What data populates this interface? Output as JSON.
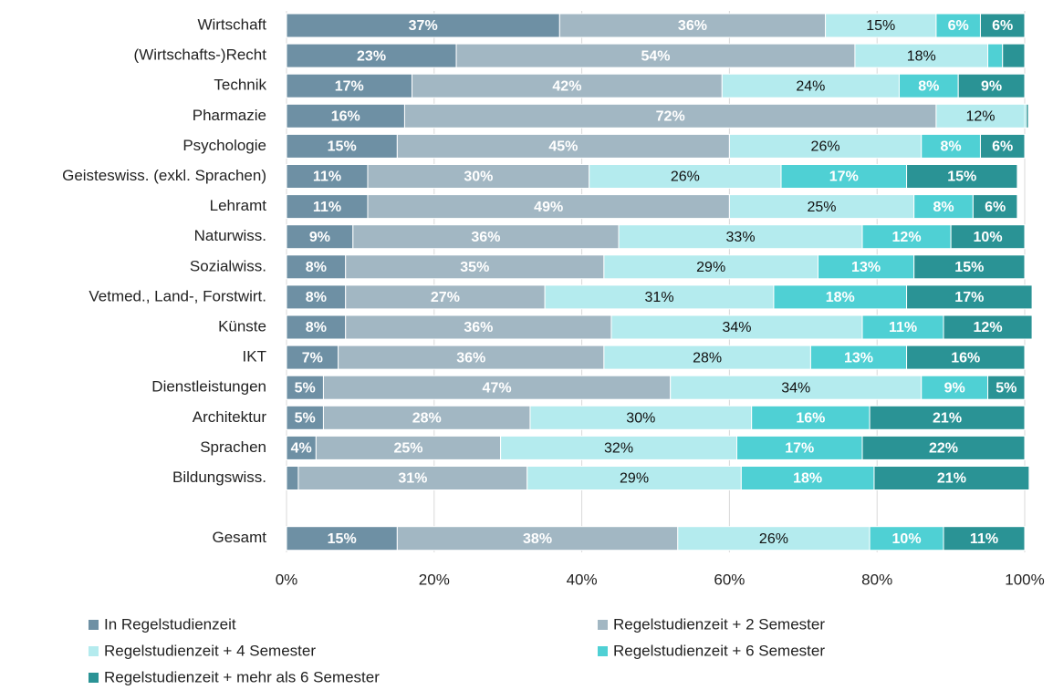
{
  "chart_data": {
    "type": "stacked-bar",
    "orientation": "horizontal",
    "categories": [
      "Wirtschaft",
      "(Wirtschafts-)Recht",
      "Technik",
      "Pharmazie",
      "Psychologie",
      "Geisteswiss. (exkl. Sprachen)",
      "Lehramt",
      "Naturwiss.",
      "Sozialwiss.",
      "Vetmed., Land-, Forstwirt.",
      "Künste",
      "IKT",
      "Dienstleistungen",
      "Architektur",
      "Sprachen",
      "Bildungswiss.",
      null,
      "Gesamt"
    ],
    "series": [
      {
        "name": "In Regelstudienzeit",
        "color": "#6e90a4",
        "values": [
          37,
          23,
          17,
          16,
          15,
          11,
          11,
          9,
          8,
          8,
          8,
          7,
          5,
          5,
          4,
          1.6,
          null,
          15
        ],
        "value_labels": [
          "37%",
          "23%",
          "17%",
          "16%",
          "15%",
          "11%",
          "11%",
          "9%",
          "8%",
          "8%",
          "8%",
          "7%",
          "5%",
          "5%",
          "4%",
          null,
          null,
          "15%"
        ]
      },
      {
        "name": "Regelstudienzeit + 2 Semester",
        "color": "#a2b7c3",
        "values": [
          36,
          54,
          42,
          72,
          45,
          30,
          49,
          36,
          35,
          27,
          36,
          36,
          47,
          28,
          25,
          31,
          null,
          38
        ],
        "value_labels": [
          "36%",
          "54%",
          "42%",
          "72%",
          "45%",
          "30%",
          "49%",
          "36%",
          "35%",
          "27%",
          "36%",
          "36%",
          "47%",
          "28%",
          "25%",
          "31%",
          null,
          "38%"
        ]
      },
      {
        "name": "Regelstudienzeit + 4 Semester",
        "color": "#b4ebee",
        "values": [
          15,
          18,
          24,
          12,
          26,
          26,
          25,
          33,
          29,
          31,
          34,
          28,
          34,
          30,
          32,
          29,
          null,
          26
        ],
        "value_labels": [
          "15%",
          "18%",
          "24%",
          "12%",
          "26%",
          "26%",
          "25%",
          "33%",
          "29%",
          "31%",
          "34%",
          "28%",
          "34%",
          "30%",
          "32%",
          "29%",
          null,
          "26%"
        ]
      },
      {
        "name": "Regelstudienzeit + 6 Semester",
        "color": "#4fd0d4",
        "values": [
          6,
          2,
          8,
          0.2,
          8,
          17,
          8,
          12,
          13,
          18,
          11,
          13,
          9,
          16,
          17,
          18,
          null,
          10
        ],
        "value_labels": [
          "6%",
          null,
          "8%",
          null,
          "8%",
          "17%",
          "8%",
          "12%",
          "13%",
          "18%",
          "11%",
          "13%",
          "9%",
          "16%",
          "17%",
          "18%",
          null,
          "10%"
        ]
      },
      {
        "name": "Regelstudienzeit + mehr als 6 Semester",
        "color": "#2a9395",
        "values": [
          6,
          3,
          9,
          0.3,
          6,
          15,
          6,
          10,
          15,
          17,
          12,
          16,
          5,
          21,
          22,
          21,
          null,
          11
        ],
        "value_labels": [
          "6%",
          null,
          "9%",
          null,
          "6%",
          "15%",
          "6%",
          "10%",
          "15%",
          "17%",
          "12%",
          "16%",
          "5%",
          "21%",
          "22%",
          "21%",
          null,
          "11%"
        ]
      }
    ],
    "xlim": [
      0,
      100
    ],
    "xticks": [
      {
        "value": 0,
        "label": "0%"
      },
      {
        "value": 20,
        "label": "20%"
      },
      {
        "value": 40,
        "label": "40%"
      },
      {
        "value": 60,
        "label": "60%"
      },
      {
        "value": 80,
        "label": "80%"
      },
      {
        "value": 100,
        "label": "100%"
      }
    ],
    "grid": true,
    "legend": "bottom"
  }
}
